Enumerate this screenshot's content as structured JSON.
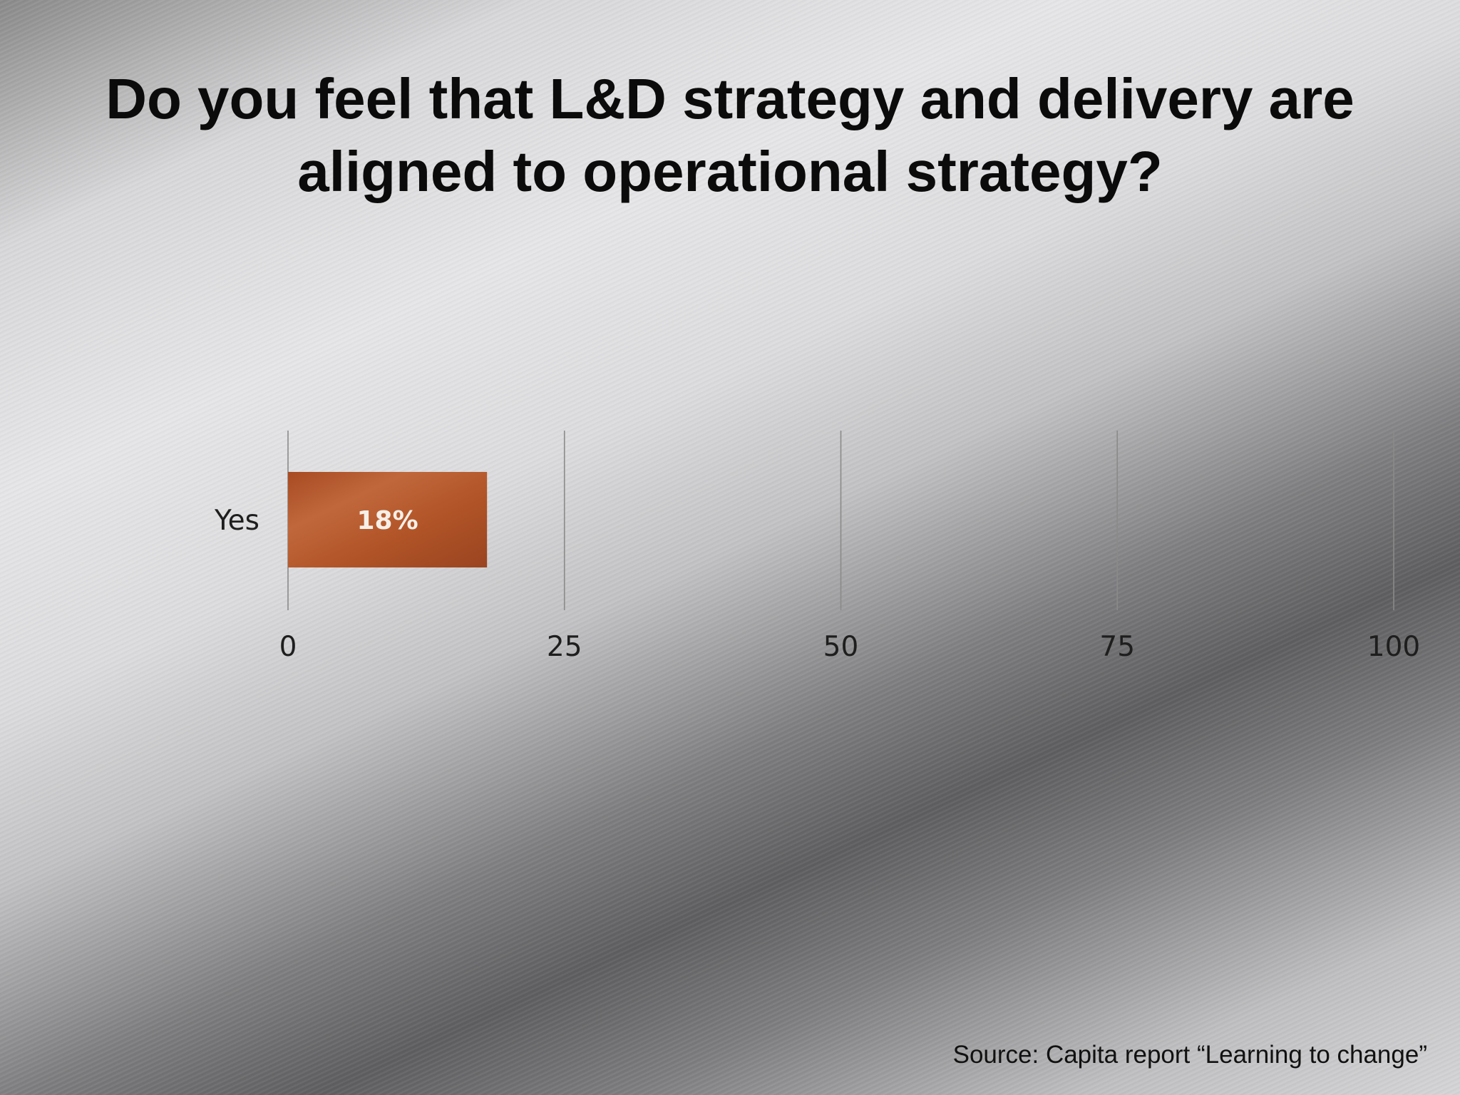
{
  "slide": {
    "title": "Do you feel that L&D strategy and delivery are aligned to operational strategy?",
    "source": "Source: Capita report “Learning to change”"
  },
  "colors": {
    "bar": "#b2552a",
    "bar_dark": "#8f3f1c",
    "gridline": "#8a8a8a",
    "text": "#111111"
  },
  "chart_data": {
    "type": "bar",
    "orientation": "horizontal",
    "categories": [
      "Yes"
    ],
    "values": [
      18
    ],
    "data_labels": [
      "18%"
    ],
    "xlim": [
      0,
      100
    ],
    "xticks": [
      0,
      25,
      50,
      75,
      100
    ],
    "grid": true,
    "legend": "none"
  }
}
